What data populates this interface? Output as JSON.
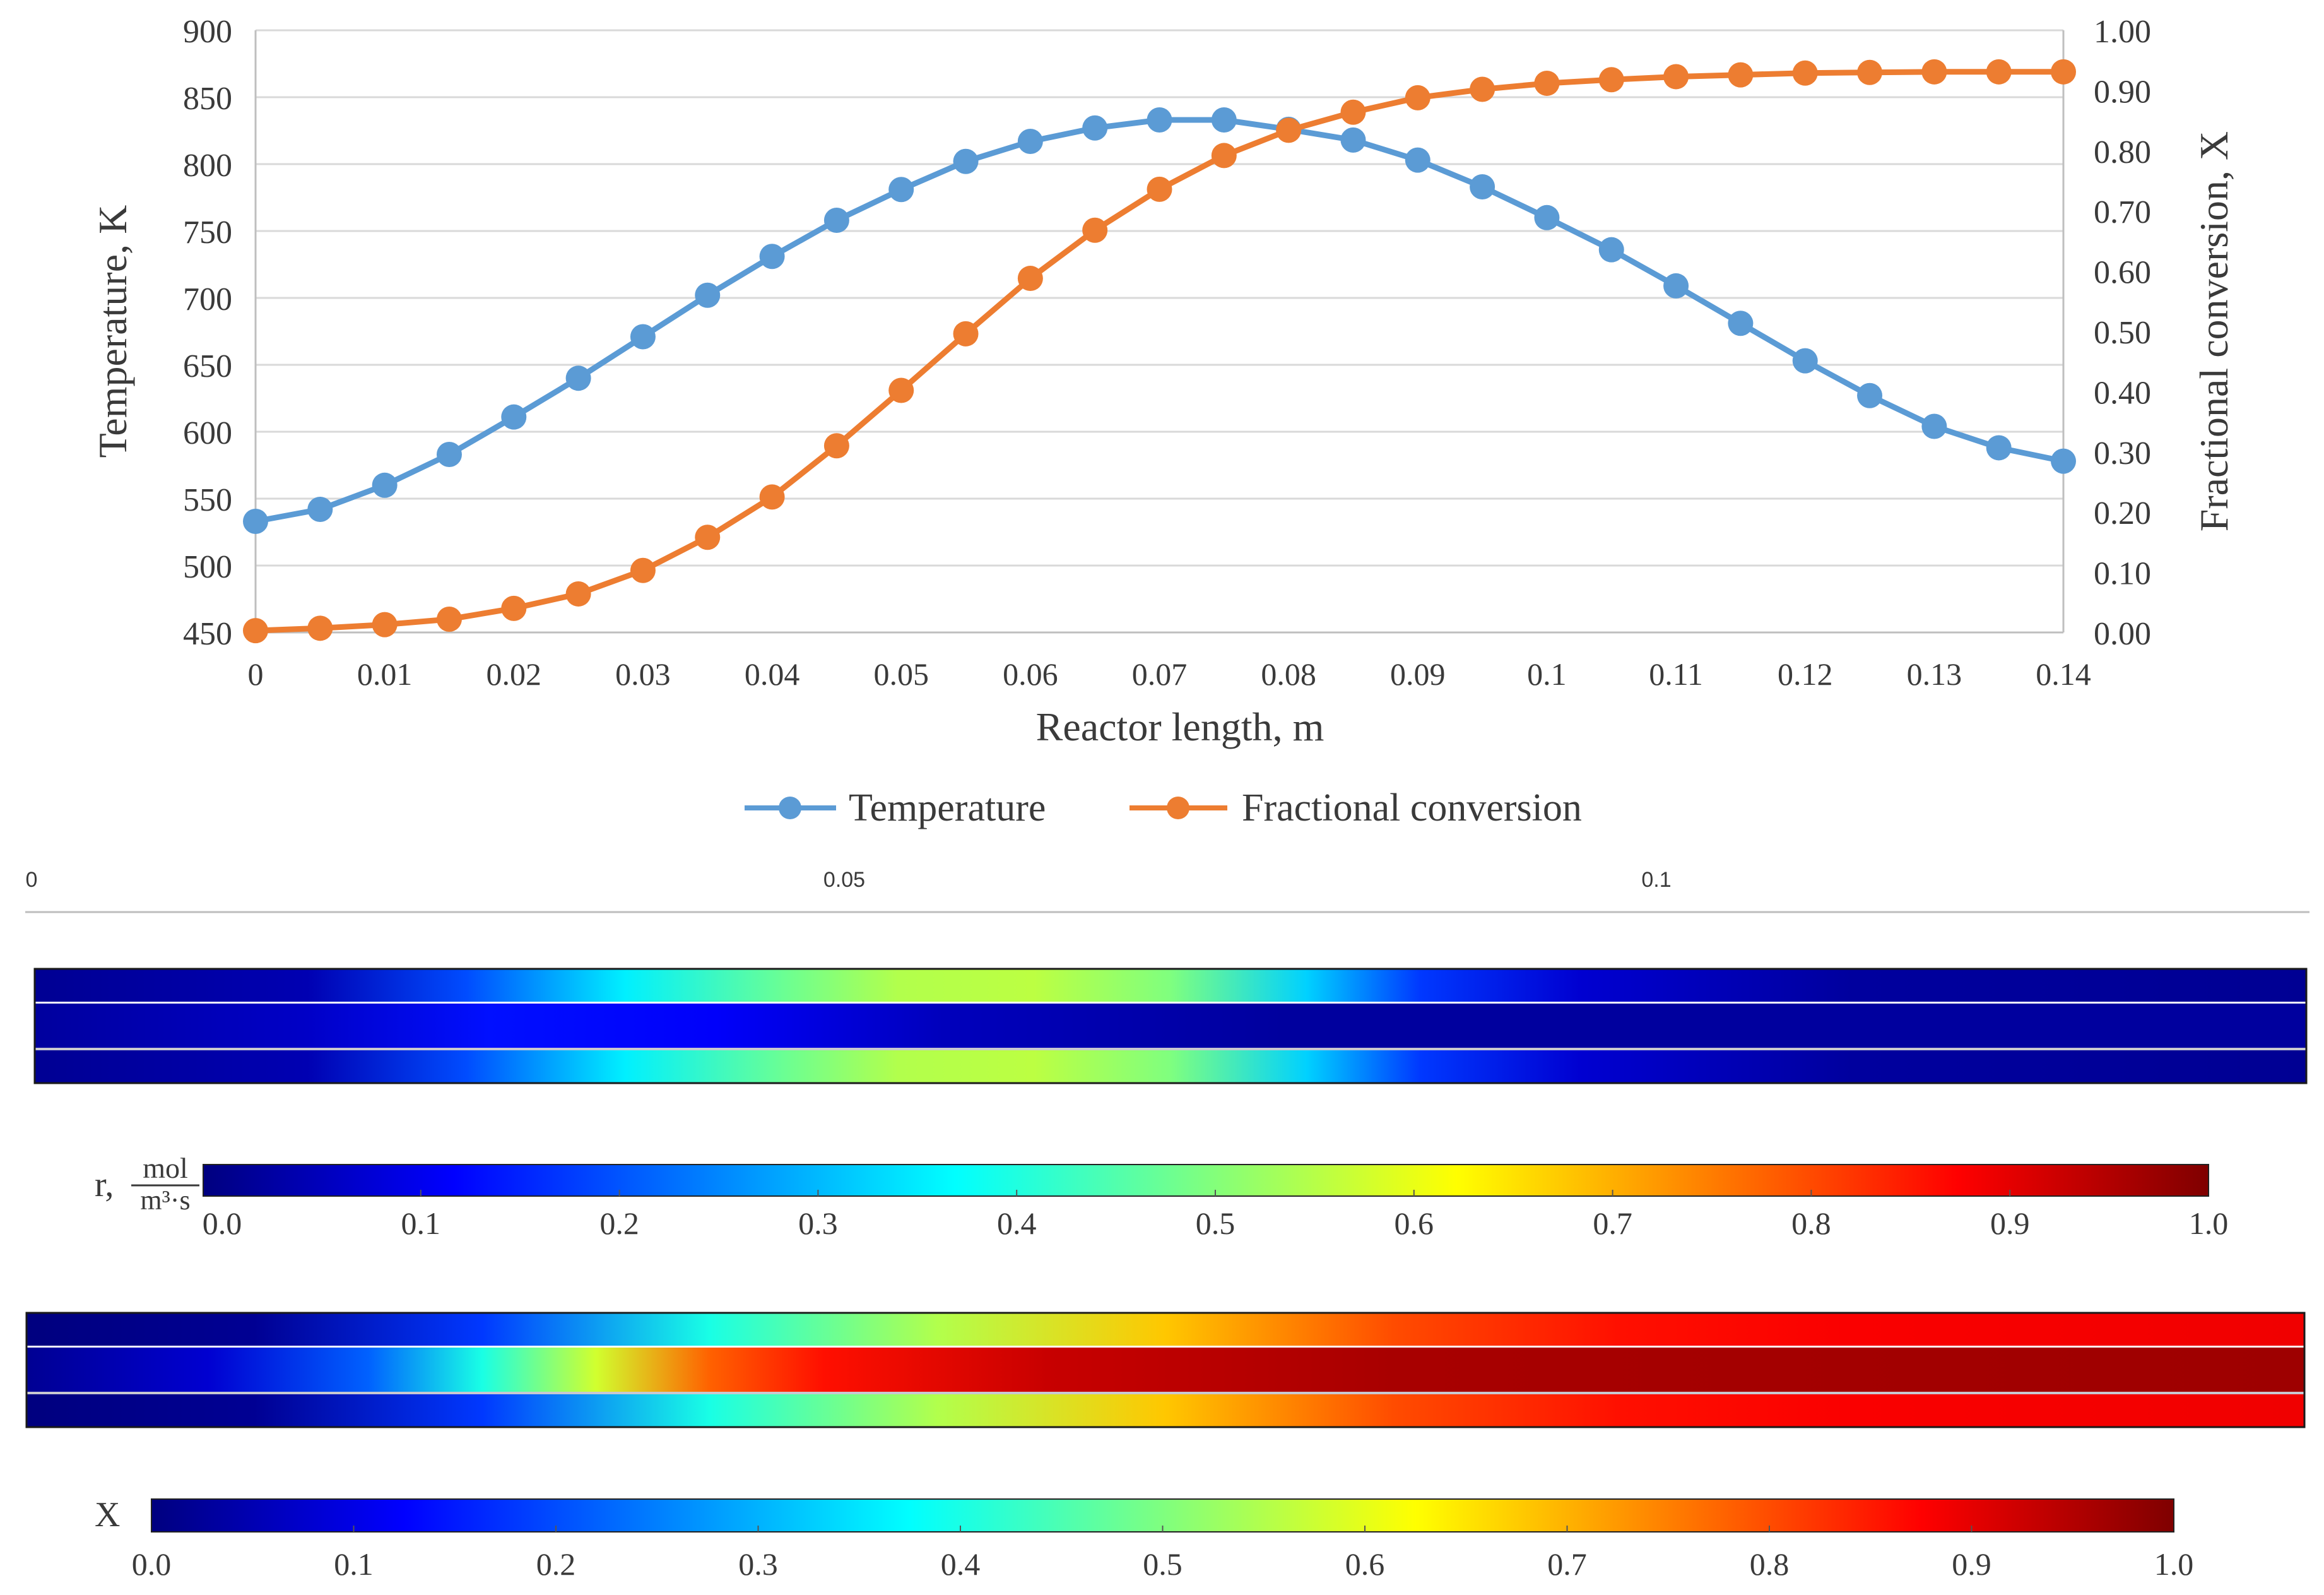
{
  "chart_data": [
    {
      "type": "line",
      "title": "",
      "xlabel": "Reactor length, m",
      "ylabel_left": "Temperature, K",
      "ylabel_right": "Fractional conversion, X",
      "xlim": [
        0,
        0.14
      ],
      "ylim_left": [
        450,
        900
      ],
      "ylim_right": [
        0,
        1
      ],
      "grid": true,
      "legend_position": "bottom",
      "x_ticks": [
        "0",
        "0.01",
        "0.02",
        "0.03",
        "0.04",
        "0.05",
        "0.06",
        "0.07",
        "0.08",
        "0.09",
        "0.1",
        "0.11",
        "0.12",
        "0.13",
        "0.14"
      ],
      "y_left_ticks": [
        "450",
        "500",
        "550",
        "600",
        "650",
        "700",
        "750",
        "800",
        "850",
        "900"
      ],
      "y_right_ticks": [
        "0.00",
        "0.10",
        "0.20",
        "0.30",
        "0.40",
        "0.50",
        "0.60",
        "0.70",
        "0.80",
        "0.90",
        "1.00"
      ],
      "x": [
        0,
        0.005,
        0.01,
        0.015,
        0.02,
        0.025,
        0.03,
        0.035,
        0.04,
        0.045,
        0.05,
        0.055,
        0.06,
        0.065,
        0.07,
        0.075,
        0.08,
        0.085,
        0.09,
        0.095,
        0.1,
        0.105,
        0.11,
        0.115,
        0.12,
        0.125,
        0.13,
        0.135,
        0.14
      ],
      "series": [
        {
          "name": "Temperature",
          "axis": "left",
          "color": "#5b9bd5",
          "values": [
            533,
            542,
            560,
            583,
            611,
            640,
            671,
            702,
            731,
            758,
            781,
            802,
            817,
            827,
            833,
            833,
            826,
            818,
            803,
            783,
            760,
            736,
            709,
            681,
            653,
            627,
            604,
            588,
            578
          ]
        },
        {
          "name": "Fractional conversion",
          "axis": "right",
          "color": "#ed7d31",
          "values": [
            0.003,
            0.007,
            0.013,
            0.022,
            0.04,
            0.064,
            0.103,
            0.158,
            0.225,
            0.31,
            0.402,
            0.496,
            0.588,
            0.668,
            0.736,
            0.792,
            0.834,
            0.864,
            0.888,
            0.902,
            0.912,
            0.918,
            0.923,
            0.926,
            0.929,
            0.93,
            0.931,
            0.931,
            0.931
          ]
        }
      ]
    },
    {
      "type": "heatmap",
      "name": "reaction-rate-field",
      "axis_ticks": [
        "0",
        "0.05",
        "0.1"
      ],
      "colorbar_label": "r, mol / m³·s",
      "colorbar_label_prefix": "r,",
      "colorbar_label_num": "mol",
      "colorbar_label_den": "m³·s",
      "colorbar_ticks": [
        "0.0",
        "0.1",
        "0.2",
        "0.3",
        "0.4",
        "0.5",
        "0.6",
        "0.7",
        "0.8",
        "0.9",
        "1.0"
      ],
      "colormap": [
        "#00007f",
        "#0000ff",
        "#007fff",
        "#00ffff",
        "#7fff7f",
        "#ffff00",
        "#ff7f00",
        "#ff0000",
        "#7f0000"
      ],
      "outer_channel_profile": [
        [
          0.0,
          0.02
        ],
        [
          0.12,
          0.05
        ],
        [
          0.19,
          0.2
        ],
        [
          0.26,
          0.36
        ],
        [
          0.33,
          0.48
        ],
        [
          0.38,
          0.55
        ],
        [
          0.44,
          0.56
        ],
        [
          0.5,
          0.5
        ],
        [
          0.56,
          0.33
        ],
        [
          0.61,
          0.18
        ],
        [
          0.68,
          0.08
        ],
        [
          0.8,
          0.03
        ],
        [
          1.0,
          0.02
        ]
      ],
      "center_channel_profile": [
        [
          0.0,
          0.03
        ],
        [
          0.12,
          0.07
        ],
        [
          0.2,
          0.14
        ],
        [
          0.3,
          0.12
        ],
        [
          0.4,
          0.06
        ],
        [
          0.55,
          0.03
        ],
        [
          1.0,
          0.03
        ]
      ]
    },
    {
      "type": "heatmap",
      "name": "conversion-field",
      "colorbar_label": "X",
      "colorbar_ticks": [
        "0.0",
        "0.1",
        "0.2",
        "0.3",
        "0.4",
        "0.5",
        "0.6",
        "0.7",
        "0.8",
        "0.9",
        "1.0"
      ],
      "colormap": [
        "#00007f",
        "#0000ff",
        "#007fff",
        "#00ffff",
        "#7fff7f",
        "#ffff00",
        "#ff7f00",
        "#ff0000",
        "#7f0000"
      ],
      "outer_channel_profile": [
        [
          0.0,
          0.0
        ],
        [
          0.1,
          0.02
        ],
        [
          0.2,
          0.18
        ],
        [
          0.3,
          0.4
        ],
        [
          0.4,
          0.55
        ],
        [
          0.5,
          0.68
        ],
        [
          0.6,
          0.8
        ],
        [
          0.7,
          0.86
        ],
        [
          0.8,
          0.88
        ],
        [
          1.0,
          0.89
        ]
      ],
      "center_channel_profile": [
        [
          0.0,
          0.02
        ],
        [
          0.08,
          0.08
        ],
        [
          0.15,
          0.22
        ],
        [
          0.2,
          0.4
        ],
        [
          0.25,
          0.58
        ],
        [
          0.3,
          0.78
        ],
        [
          0.35,
          0.86
        ],
        [
          0.45,
          0.93
        ],
        [
          0.6,
          0.96
        ],
        [
          1.0,
          0.97
        ]
      ]
    }
  ]
}
